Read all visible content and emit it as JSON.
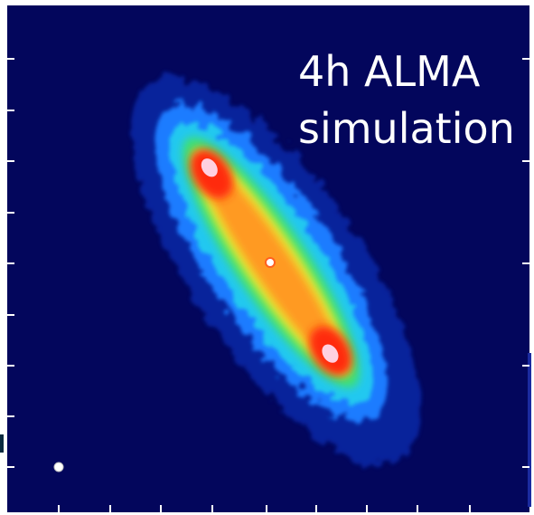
{
  "image": {
    "caption_lines": [
      "4h ALMA",
      "simulation"
    ]
  }
}
